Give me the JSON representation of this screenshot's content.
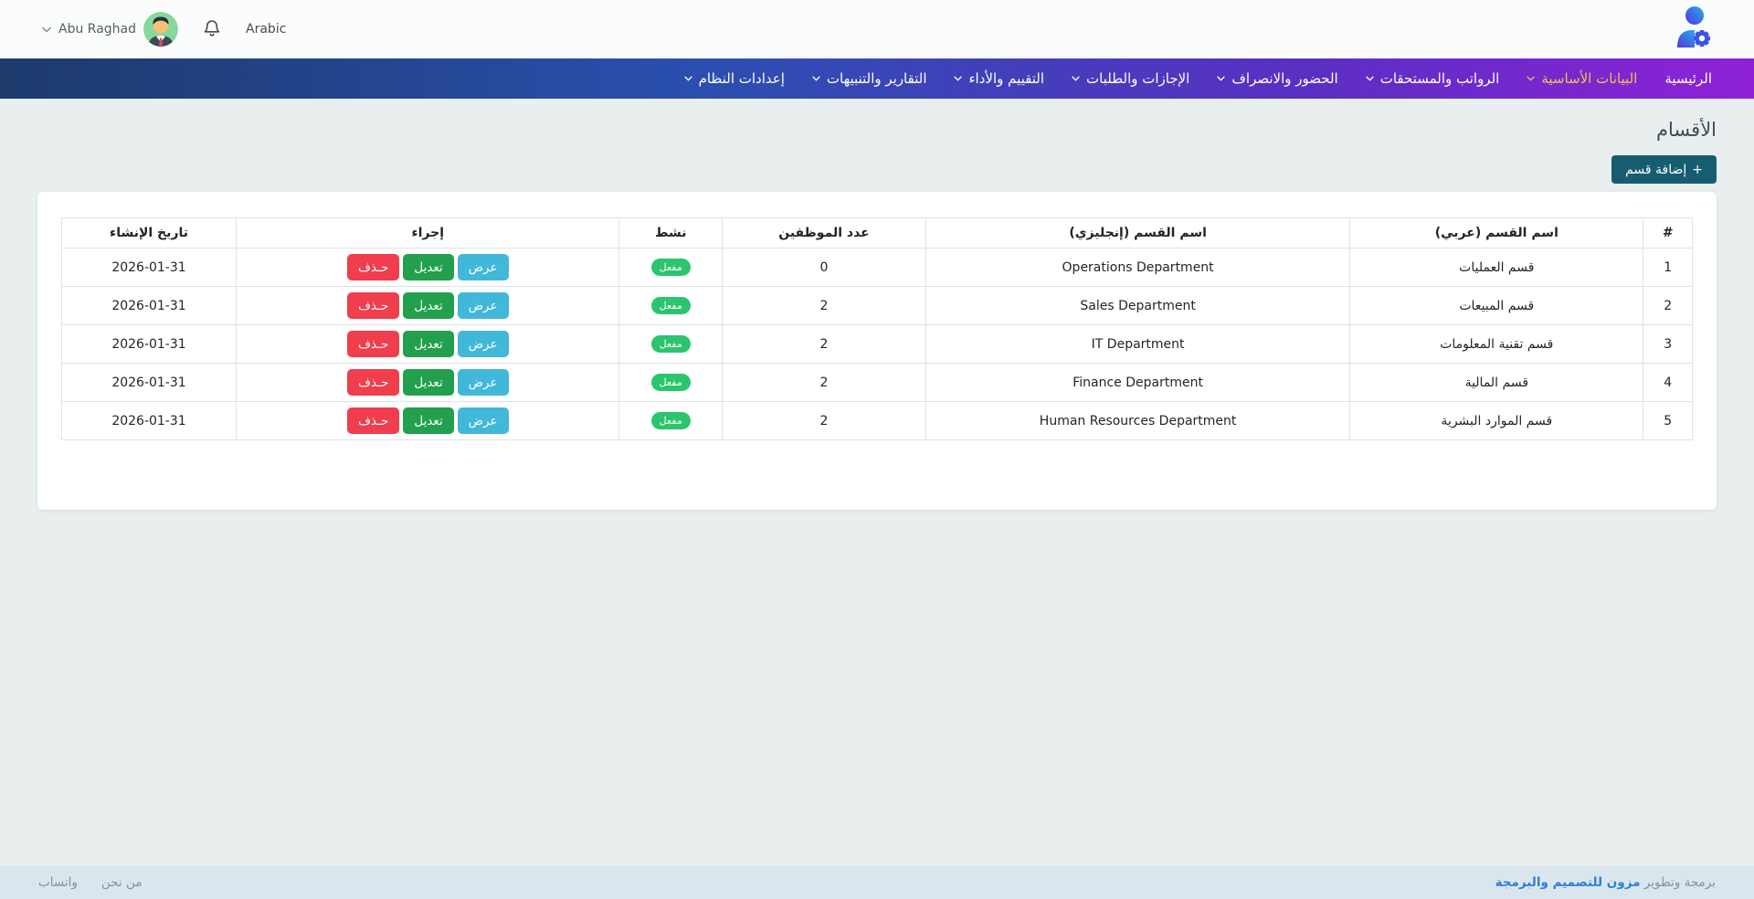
{
  "header": {
    "user_name": "Abu Raghad",
    "language": "Arabic"
  },
  "nav": {
    "items": [
      {
        "label": "الرئيسية",
        "active": false,
        "chevron": false
      },
      {
        "label": "البيانات الأساسية",
        "active": true,
        "chevron": true
      },
      {
        "label": "الرواتب والمستحقات",
        "active": false,
        "chevron": true
      },
      {
        "label": "الحضور والانصراف",
        "active": false,
        "chevron": true
      },
      {
        "label": "الإجازات والطلبات",
        "active": false,
        "chevron": true
      },
      {
        "label": "التقييم والأداء",
        "active": false,
        "chevron": true
      },
      {
        "label": "التقارير والتنبيهات",
        "active": false,
        "chevron": true
      },
      {
        "label": "إعدادات النظام",
        "active": false,
        "chevron": true
      }
    ]
  },
  "page": {
    "title": "الأقسام",
    "add_button_label": "إضافة قسم"
  },
  "icons": {
    "plus": "+"
  },
  "table": {
    "columns": [
      "#",
      "اسم القسم (عربي)",
      "اسم القسم (إنجليزي)",
      "عدد الموظفين",
      "نشط",
      "إجراء",
      "تاريخ الإنشاء"
    ],
    "actions": {
      "view": "عرض",
      "edit": "تعديل",
      "delete": "حـذف"
    },
    "active_badge": "مفعل",
    "rows": [
      {
        "num": "1",
        "name_ar": "قسم العمليات",
        "name_en": "Operations Department",
        "employees": "0",
        "status": "مفعل",
        "date": "2026-01-31"
      },
      {
        "num": "2",
        "name_ar": "قسم المبيعات",
        "name_en": "Sales Department",
        "employees": "2",
        "status": "مفعل",
        "date": "2026-01-31"
      },
      {
        "num": "3",
        "name_ar": "قسم تقنية المعلومات",
        "name_en": "IT Department",
        "employees": "2",
        "status": "مفعل",
        "date": "2026-01-31"
      },
      {
        "num": "4",
        "name_ar": "قسم المالية",
        "name_en": "Finance Department",
        "employees": "2",
        "status": "مفعل",
        "date": "2026-01-31"
      },
      {
        "num": "5",
        "name_ar": "قسم الموارد البشرية",
        "name_en": "Human Resources Department",
        "employees": "2",
        "status": "مفعل",
        "date": "2026-01-31"
      }
    ]
  },
  "footer": {
    "credit_prefix": "برمجة وتطوير ",
    "credit_link": "مزون للتصميم والبرمجة",
    "links": [
      {
        "label": "من نحن"
      },
      {
        "label": "واتساب"
      }
    ]
  },
  "colors": {
    "nav_gradient_start": "#1c3a6b",
    "nav_gradient_end": "#8e21d6",
    "nav_active": "#f2c14e",
    "add_button": "#175d72",
    "badge_active": "#2bc56d",
    "btn_view": "#41b8d9",
    "btn_edit": "#22a04d",
    "btn_delete": "#f03e4d",
    "footer_link": "#2f7fd6",
    "page_bg": "#e9efef"
  }
}
